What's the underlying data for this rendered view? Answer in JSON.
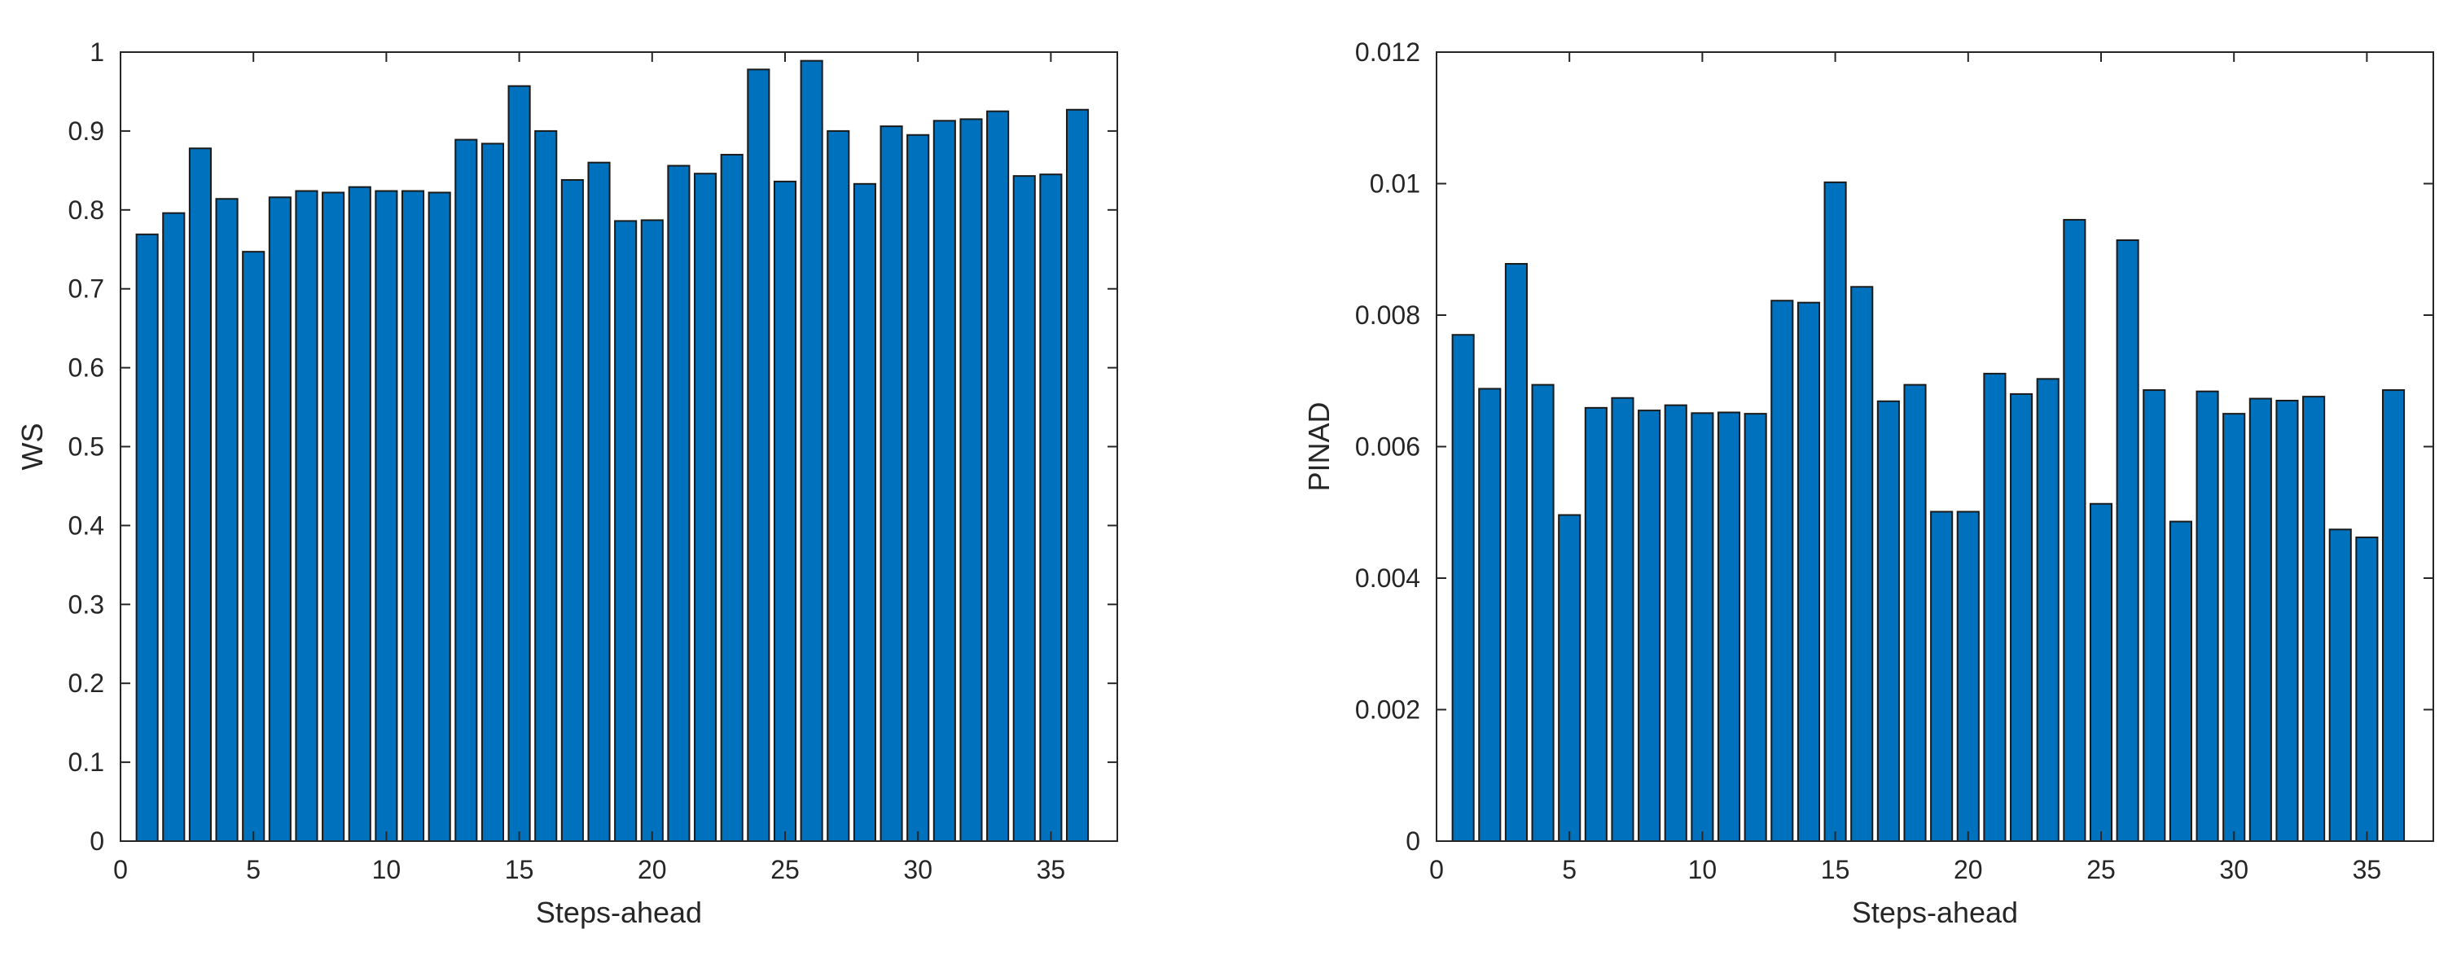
{
  "chart_data": [
    {
      "type": "bar",
      "xlabel": "Steps-ahead",
      "ylabel": "WS",
      "xlim": [
        0,
        37.5
      ],
      "ylim": [
        0,
        1
      ],
      "xticks": [
        0,
        5,
        10,
        15,
        20,
        25,
        30,
        35
      ],
      "yticks": [
        0,
        0.1,
        0.2,
        0.3,
        0.4,
        0.5,
        0.6,
        0.7,
        0.8,
        0.9,
        1
      ],
      "x": [
        1,
        2,
        3,
        4,
        5,
        6,
        7,
        8,
        9,
        10,
        11,
        12,
        13,
        14,
        15,
        16,
        17,
        18,
        19,
        20,
        21,
        22,
        23,
        24,
        25,
        26,
        27,
        28,
        29,
        30,
        31,
        32,
        33,
        34,
        35,
        36
      ],
      "values": [
        0.769,
        0.796,
        0.878,
        0.814,
        0.747,
        0.816,
        0.824,
        0.822,
        0.829,
        0.824,
        0.824,
        0.822,
        0.889,
        0.884,
        0.957,
        0.9,
        0.838,
        0.86,
        0.786,
        0.787,
        0.856,
        0.846,
        0.87,
        0.978,
        0.836,
        0.989,
        0.9,
        0.833,
        0.906,
        0.895,
        0.913,
        0.915,
        0.925,
        0.843,
        0.845,
        0.927
      ],
      "bar_color": "#0072BD",
      "grid": false,
      "legend": false
    },
    {
      "type": "bar",
      "xlabel": "Steps-ahead",
      "ylabel": "PINAD",
      "xlim": [
        0,
        37.5
      ],
      "ylim": [
        0,
        0.012
      ],
      "xticks": [
        0,
        5,
        10,
        15,
        20,
        25,
        30,
        35
      ],
      "yticks": [
        0,
        0.002,
        0.004,
        0.006,
        0.008,
        0.01,
        0.012
      ],
      "x": [
        1,
        2,
        3,
        4,
        5,
        6,
        7,
        8,
        9,
        10,
        11,
        12,
        13,
        14,
        15,
        16,
        17,
        18,
        19,
        20,
        21,
        22,
        23,
        24,
        25,
        26,
        27,
        28,
        29,
        30,
        31,
        32,
        33,
        34,
        35,
        36
      ],
      "values": [
        0.0077,
        0.00688,
        0.00878,
        0.00694,
        0.00496,
        0.00659,
        0.00674,
        0.00655,
        0.00663,
        0.00651,
        0.00652,
        0.0065,
        0.00822,
        0.00819,
        0.01002,
        0.00843,
        0.00669,
        0.00694,
        0.00501,
        0.00501,
        0.00711,
        0.0068,
        0.00703,
        0.00945,
        0.00513,
        0.00914,
        0.00686,
        0.00486,
        0.00684,
        0.0065,
        0.00673,
        0.0067,
        0.00676,
        0.00474,
        0.00462,
        0.00686
      ],
      "bar_color": "#0072BD",
      "grid": false,
      "legend": false
    }
  ]
}
